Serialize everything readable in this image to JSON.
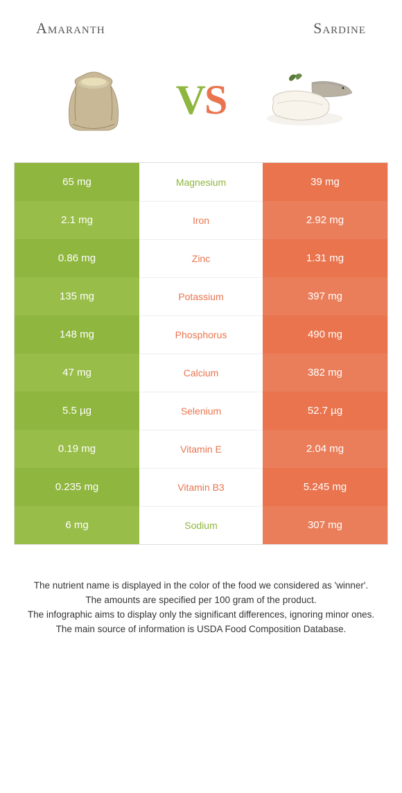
{
  "colors": {
    "green": "#8fb63e",
    "orange": "#e9744e",
    "green_alt": "#98bd48",
    "orange_alt": "#eb7e5a",
    "mid_green": "#8fb63e",
    "mid_orange": "#e9744e"
  },
  "header": {
    "left": "Amaranth",
    "right": "Sardine"
  },
  "vs": {
    "v": "V",
    "s": "S"
  },
  "rows": [
    {
      "left": "65 mg",
      "mid": "Magnesium",
      "right": "39 mg",
      "winner": "left"
    },
    {
      "left": "2.1 mg",
      "mid": "Iron",
      "right": "2.92 mg",
      "winner": "right"
    },
    {
      "left": "0.86 mg",
      "mid": "Zinc",
      "right": "1.31 mg",
      "winner": "right"
    },
    {
      "left": "135 mg",
      "mid": "Potassium",
      "right": "397 mg",
      "winner": "right"
    },
    {
      "left": "148 mg",
      "mid": "Phosphorus",
      "right": "490 mg",
      "winner": "right"
    },
    {
      "left": "47 mg",
      "mid": "Calcium",
      "right": "382 mg",
      "winner": "right"
    },
    {
      "left": "5.5 µg",
      "mid": "Selenium",
      "right": "52.7 µg",
      "winner": "right"
    },
    {
      "left": "0.19 mg",
      "mid": "Vitamin E",
      "right": "2.04 mg",
      "winner": "right"
    },
    {
      "left": "0.235 mg",
      "mid": "Vitamin B3",
      "right": "5.245 mg",
      "winner": "right"
    },
    {
      "left": "6 mg",
      "mid": "Sodium",
      "right": "307 mg",
      "winner": "left"
    }
  ],
  "footnotes": [
    "The nutrient name is displayed in the color of the food we considered as 'winner'.",
    "The amounts are specified per 100 gram of the product.",
    "The infographic aims to display only the significant differences, ignoring minor ones.",
    "The main source of information is USDA Food Composition Database."
  ]
}
